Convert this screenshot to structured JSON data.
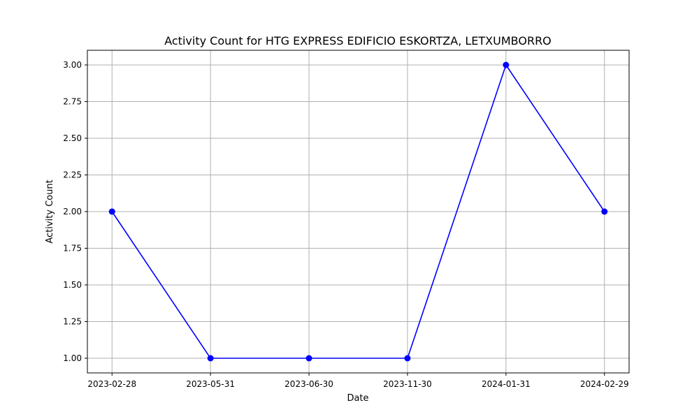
{
  "chart_data": {
    "type": "line",
    "title": "Activity Count for HTG EXPRESS EDIFICIO ESKORTZA, LETXUMBORRO",
    "xlabel": "Date",
    "ylabel": "Activity Count",
    "categories": [
      "2023-02-28",
      "2023-05-31",
      "2023-06-30",
      "2023-11-30",
      "2024-01-31",
      "2024-02-29"
    ],
    "series": [
      {
        "values": [
          2,
          1,
          1,
          1,
          3,
          2
        ],
        "color": "#0000ff",
        "marker": "circle"
      }
    ],
    "ylim": [
      0.9,
      3.1
    ],
    "yticks": [
      "1.00",
      "1.25",
      "1.50",
      "1.75",
      "2.00",
      "2.25",
      "2.50",
      "2.75",
      "3.00"
    ],
    "grid": true,
    "colors": {
      "line": "#0000ff",
      "grid": "#b0b0b0",
      "axes": "#000000"
    }
  }
}
